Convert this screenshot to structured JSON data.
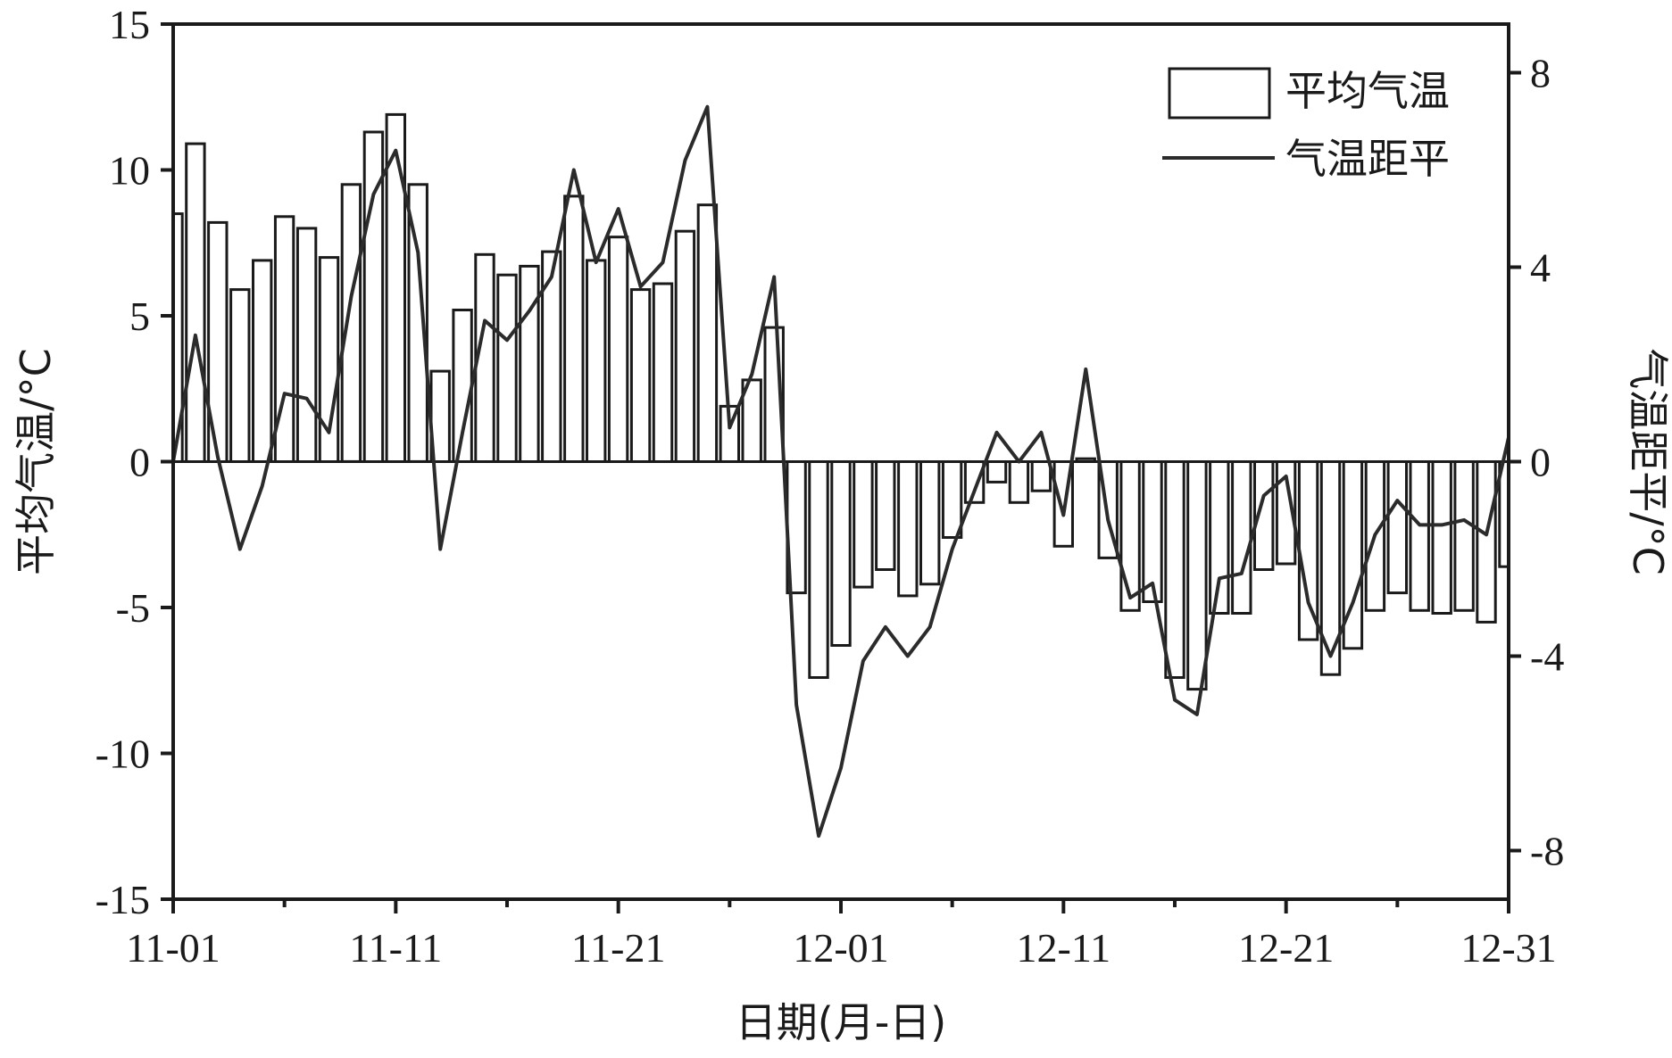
{
  "chart_data": {
    "type": "bar+line",
    "title": "",
    "xlabel": "日期(月-日)",
    "ylabel_left": "平均气温/°C",
    "ylabel_right": "气温距平/°C",
    "ylim_left": [
      -15,
      15
    ],
    "ylim_right": [
      -9,
      9
    ],
    "xticks": [
      "11-01",
      "11-11",
      "11-21",
      "12-01",
      "12-11",
      "12-21",
      "12-31"
    ],
    "yticks_left": [
      "15",
      "10",
      "5",
      "0",
      "-5",
      "-10",
      "-15"
    ],
    "yticks_right": [
      "8",
      "4",
      "0",
      "-4",
      "-8"
    ],
    "legend_position": "top-right",
    "grid": false,
    "series": [
      {
        "name": "平均气温",
        "type": "bar",
        "axis": "left",
        "values": [
          8.5,
          10.9,
          8.2,
          5.9,
          6.9,
          8.4,
          8.0,
          7.0,
          9.5,
          11.3,
          11.9,
          9.5,
          3.1,
          5.2,
          7.1,
          6.4,
          6.7,
          7.2,
          9.1,
          6.9,
          7.7,
          5.9,
          6.1,
          7.9,
          8.8,
          1.9,
          2.8,
          4.6,
          -4.5,
          -7.4,
          -6.3,
          -4.3,
          -3.7,
          -4.6,
          -4.2,
          -2.6,
          -1.4,
          -0.7,
          -1.4,
          -1.0,
          -2.9,
          0.1,
          -3.3,
          -5.1,
          -4.8,
          -7.4,
          -7.8,
          -5.2,
          -5.2,
          -3.7,
          -3.5,
          -6.1,
          -7.3,
          -6.4,
          -5.1,
          -4.5,
          -5.1,
          -5.2,
          -5.1,
          -5.5,
          -3.6
        ]
      },
      {
        "name": "气温距平",
        "type": "line",
        "axis": "right",
        "values": [
          0.0,
          2.6,
          0.1,
          -1.8,
          -0.5,
          1.4,
          1.3,
          0.6,
          3.4,
          5.5,
          6.4,
          4.3,
          -1.8,
          0.6,
          2.9,
          2.5,
          3.1,
          3.8,
          6.0,
          4.1,
          5.2,
          3.6,
          4.1,
          6.2,
          7.3,
          0.7,
          1.8,
          3.8,
          -5.0,
          -7.7,
          -6.3,
          -4.1,
          -3.4,
          -4.0,
          -3.4,
          -1.8,
          -0.6,
          0.6,
          0.0,
          0.6,
          -1.1,
          1.9,
          -1.2,
          -2.8,
          -2.5,
          -4.9,
          -5.2,
          -2.4,
          -2.3,
          -0.7,
          -0.3,
          -2.9,
          -4.0,
          -2.9,
          -1.5,
          -0.8,
          -1.3,
          -1.3,
          -1.2,
          -1.5,
          0.5
        ]
      }
    ]
  }
}
